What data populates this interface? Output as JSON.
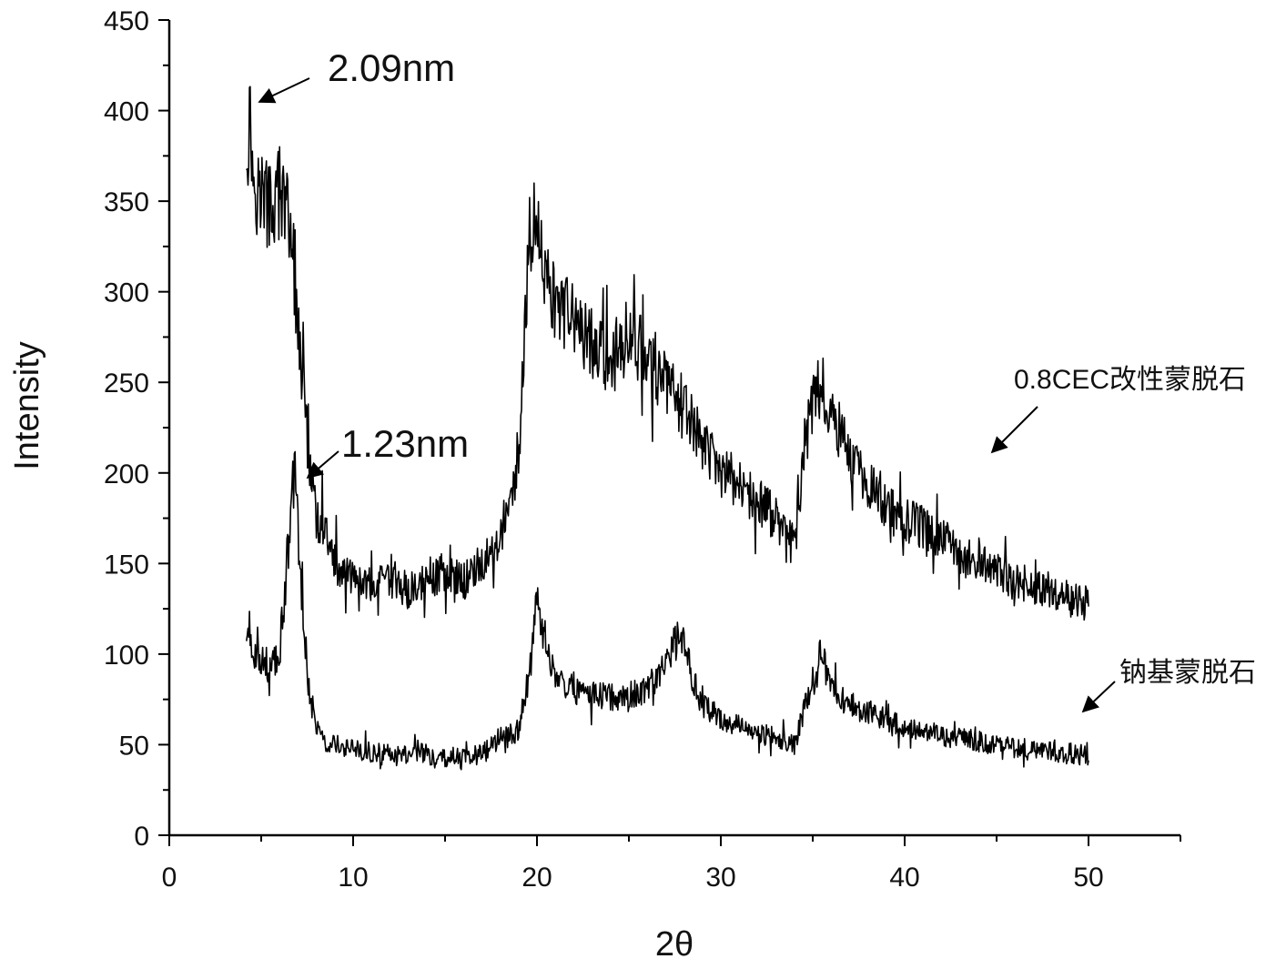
{
  "chart_data": {
    "type": "line",
    "title": "",
    "xlabel": "2θ",
    "ylabel": "Intensity",
    "xlim": [
      0,
      55
    ],
    "ylim": [
      0,
      450
    ],
    "x_ticks": [
      0,
      10,
      20,
      30,
      40,
      50
    ],
    "y_ticks": [
      0,
      50,
      100,
      150,
      200,
      250,
      300,
      350,
      400,
      450
    ],
    "grid": false,
    "line_color": "#000000",
    "series": [
      {
        "name": "0.8CEC改性蒙脱石",
        "x_range": [
          4.2,
          50
        ],
        "anchors": [
          [
            4.2,
            380
          ],
          [
            4.4,
            395
          ],
          [
            4.6,
            360
          ],
          [
            5.0,
            355
          ],
          [
            5.5,
            345
          ],
          [
            6.0,
            355
          ],
          [
            6.5,
            340
          ],
          [
            7.0,
            285
          ],
          [
            7.5,
            220
          ],
          [
            8.0,
            175
          ],
          [
            8.5,
            165
          ],
          [
            9.0,
            150
          ],
          [
            10,
            140
          ],
          [
            11,
            138
          ],
          [
            12,
            140
          ],
          [
            13,
            135
          ],
          [
            14,
            140
          ],
          [
            15,
            145
          ],
          [
            16,
            140
          ],
          [
            17,
            150
          ],
          [
            18,
            165
          ],
          [
            19,
            200
          ],
          [
            19.6,
            330
          ],
          [
            20.0,
            340
          ],
          [
            20.5,
            310
          ],
          [
            21,
            290
          ],
          [
            22,
            285
          ],
          [
            23,
            270
          ],
          [
            24,
            262
          ],
          [
            25,
            275
          ],
          [
            26,
            265
          ],
          [
            27,
            250
          ],
          [
            28,
            235
          ],
          [
            29,
            215
          ],
          [
            30,
            200
          ],
          [
            31,
            195
          ],
          [
            32,
            185
          ],
          [
            33,
            175
          ],
          [
            34,
            160
          ],
          [
            34.8,
            230
          ],
          [
            35.5,
            250
          ],
          [
            36.2,
            230
          ],
          [
            37,
            210
          ],
          [
            38,
            195
          ],
          [
            39,
            180
          ],
          [
            40,
            175
          ],
          [
            41,
            170
          ],
          [
            42,
            165
          ],
          [
            43,
            155
          ],
          [
            44,
            150
          ],
          [
            45,
            145
          ],
          [
            46,
            140
          ],
          [
            47,
            138
          ],
          [
            48,
            135
          ],
          [
            49,
            130
          ],
          [
            50,
            128
          ]
        ]
      },
      {
        "name": "钠基蒙脱石",
        "x_range": [
          4.2,
          50
        ],
        "anchors": [
          [
            4.2,
            112
          ],
          [
            4.6,
            102
          ],
          [
            5.0,
            98
          ],
          [
            5.5,
            92
          ],
          [
            6.0,
            100
          ],
          [
            6.4,
            150
          ],
          [
            6.8,
            205
          ],
          [
            7.2,
            130
          ],
          [
            7.6,
            80
          ],
          [
            8.0,
            60
          ],
          [
            8.5,
            52
          ],
          [
            9.0,
            50
          ],
          [
            10,
            47
          ],
          [
            12,
            44
          ],
          [
            14,
            45
          ],
          [
            16,
            42
          ],
          [
            17,
            45
          ],
          [
            18,
            52
          ],
          [
            19,
            58
          ],
          [
            19.6,
            90
          ],
          [
            20.0,
            130
          ],
          [
            20.5,
            105
          ],
          [
            21,
            88
          ],
          [
            22,
            80
          ],
          [
            23,
            78
          ],
          [
            24,
            76
          ],
          [
            25,
            77
          ],
          [
            26,
            80
          ],
          [
            27,
            95
          ],
          [
            27.8,
            112
          ],
          [
            28.5,
            85
          ],
          [
            29,
            72
          ],
          [
            30,
            65
          ],
          [
            31,
            60
          ],
          [
            32,
            56
          ],
          [
            33,
            55
          ],
          [
            34,
            50
          ],
          [
            35,
            85
          ],
          [
            35.6,
            95
          ],
          [
            36.3,
            78
          ],
          [
            37,
            72
          ],
          [
            38,
            68
          ],
          [
            40,
            60
          ],
          [
            42,
            55
          ],
          [
            44,
            52
          ],
          [
            46,
            48
          ],
          [
            48,
            46
          ],
          [
            50,
            44
          ]
        ]
      }
    ],
    "annotations": [
      {
        "text": "2.09nm",
        "at": [
          4.5,
          402
        ]
      },
      {
        "text": "1.23nm",
        "at": [
          7.4,
          196
        ]
      },
      {
        "text": "0.8CEC改性蒙脱石",
        "points_to": "0.8CEC改性蒙脱石"
      },
      {
        "text": "钠基蒙脱石",
        "points_to": "钠基蒙脱石"
      }
    ]
  }
}
